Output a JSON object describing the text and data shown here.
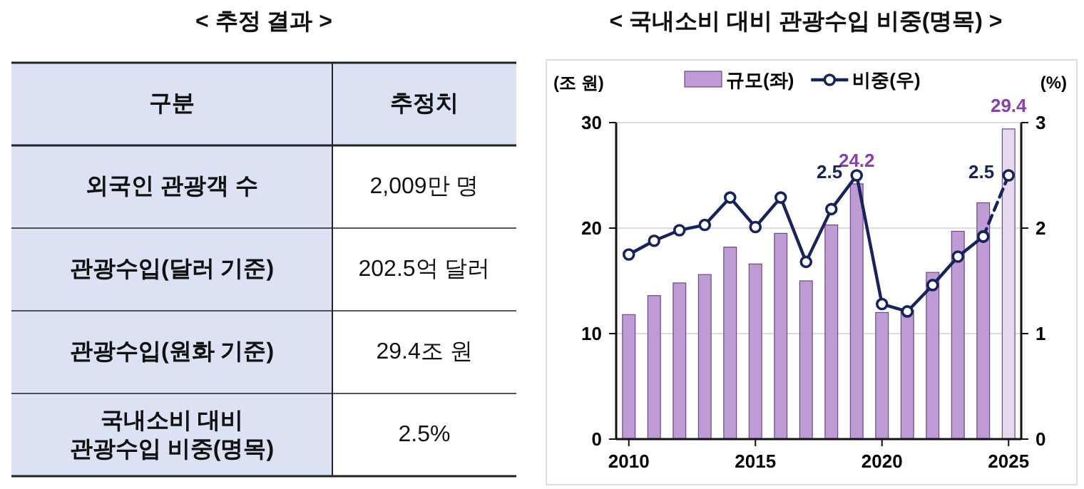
{
  "chart_data": [
    {
      "type": "other",
      "title": "< 추정 결과 >",
      "annotations": [
        "구분",
        "추정치",
        "외국인 관광객 수",
        "2,009만 명",
        "관광수입(달러 기준)",
        "202.5억 달러",
        "관광수입(원화 기준)",
        "29.4조 원",
        "국내소비 대비 관광수입 비중(명목)",
        "2.5%"
      ]
    },
    {
      "type": "bar",
      "title": "< 국내소비 대비 관광수입 비중(명목) >",
      "ylabel": "(조 원)",
      "y2label": "(%)",
      "x": [
        2010,
        2011,
        2012,
        2013,
        2014,
        2015,
        2016,
        2017,
        2018,
        2019,
        2020,
        2021,
        2022,
        2023,
        2024,
        2025
      ],
      "xlim": [
        2009.5,
        2025.5
      ],
      "xticks": [
        2010,
        2015,
        2020,
        2025
      ],
      "ylim": [
        0,
        30
      ],
      "yticks": [
        0,
        10,
        20,
        30
      ],
      "y2lim": [
        0,
        3
      ],
      "y2ticks": [
        0,
        1,
        2,
        3
      ],
      "grid": "y",
      "legend": "top",
      "series": [
        {
          "name": "규모(좌)",
          "type": "bar",
          "color": "#bf9bd6",
          "colors": [
            "#bf9bd6",
            "#bf9bd6",
            "#bf9bd6",
            "#bf9bd6",
            "#bf9bd6",
            "#bf9bd6",
            "#bf9bd6",
            "#bf9bd6",
            "#bf9bd6",
            "#bf9bd6",
            "#bf9bd6",
            "#bf9bd6",
            "#bf9bd6",
            "#bf9bd6",
            "#bf9bd6",
            "#e6d8ee"
          ],
          "values": [
            11.8,
            13.6,
            14.8,
            15.6,
            18.2,
            16.6,
            19.5,
            15.0,
            20.3,
            24.2,
            12.0,
            12.2,
            15.8,
            19.7,
            22.4,
            29.4
          ],
          "value_labels": [
            null,
            null,
            null,
            null,
            null,
            null,
            null,
            null,
            null,
            "24.2",
            null,
            null,
            null,
            null,
            null,
            "29.4"
          ]
        },
        {
          "name": "비중(우)",
          "type": "line",
          "axis": "y2",
          "color": "#17245a",
          "marker": "circle",
          "line_style": "solid",
          "values": [
            1.75,
            1.88,
            1.98,
            2.03,
            2.29,
            2.01,
            2.29,
            1.68,
            2.18,
            2.5,
            1.28,
            1.21,
            1.46,
            1.73,
            1.92,
            null
          ],
          "value_labels": [
            null,
            null,
            null,
            null,
            null,
            null,
            null,
            null,
            null,
            "2.5",
            null,
            null,
            null,
            null,
            null,
            null
          ]
        },
        {
          "type": "line",
          "axis": "y2",
          "color": "#17245a",
          "marker": "circle",
          "line_style": "dashed",
          "values": [
            null,
            null,
            null,
            null,
            null,
            null,
            null,
            null,
            null,
            null,
            null,
            null,
            null,
            null,
            1.92,
            2.5
          ],
          "value_labels": [
            null,
            null,
            null,
            null,
            null,
            null,
            null,
            null,
            null,
            null,
            null,
            null,
            null,
            null,
            null,
            "2.5"
          ]
        }
      ]
    }
  ]
}
